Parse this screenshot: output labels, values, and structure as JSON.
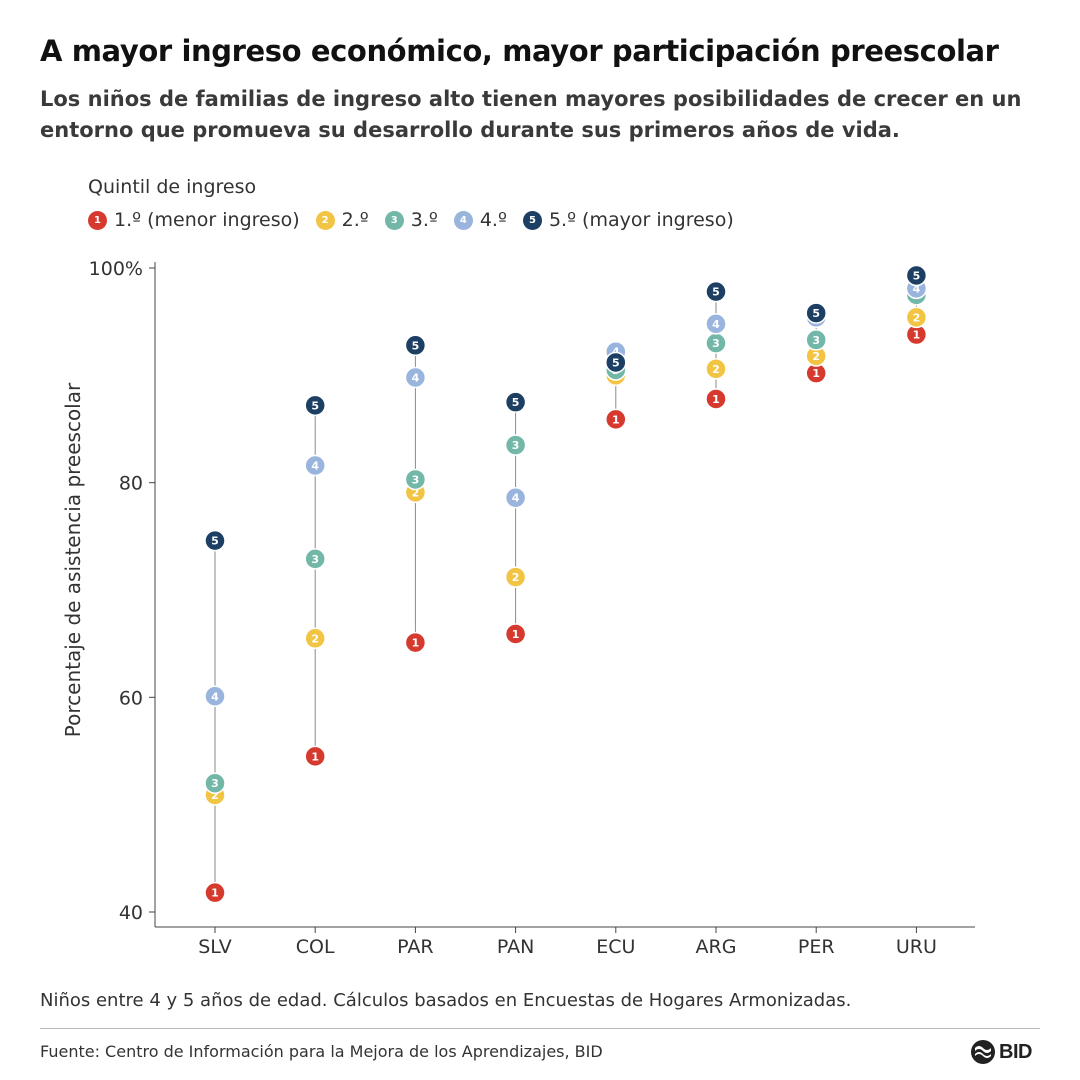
{
  "header": {
    "title": "A mayor ingreso económico, mayor participación preescolar",
    "subtitle": "Los niños de familias de ingreso alto tienen mayores posibilidades de crecer en un entorno que promueva su desarrollo durante sus primeros años de vida."
  },
  "legend": {
    "title": "Quintil de ingreso",
    "items": [
      {
        "marker": "1",
        "label": "1.º (menor ingreso)",
        "color": "#d63a2f"
      },
      {
        "marker": "2",
        "label": "2.º",
        "color": "#f2c443"
      },
      {
        "marker": "3",
        "label": "3.º",
        "color": "#72b7a8"
      },
      {
        "marker": "4",
        "label": "4.º",
        "color": "#99b4dd"
      },
      {
        "marker": "5",
        "label": "5.º (mayor ingreso)",
        "color": "#1d3f63"
      }
    ]
  },
  "chart_data": {
    "type": "scatter",
    "ylabel": "Porcentaje de asistencia preescolar",
    "xlabel": "",
    "ylim": [
      40,
      100
    ],
    "yticks": [
      {
        "value": 40,
        "label": "40"
      },
      {
        "value": 60,
        "label": "60"
      },
      {
        "value": 80,
        "label": "80"
      },
      {
        "value": 100,
        "label": "100%"
      }
    ],
    "grid": false,
    "categories": [
      "SLV",
      "COL",
      "PAR",
      "PAN",
      "ECU",
      "ARG",
      "PER",
      "URU"
    ],
    "series": [
      {
        "name": "1.º (menor ingreso)",
        "marker": "1",
        "color": "#d63a2f",
        "values": [
          41.8,
          54.5,
          65.1,
          65.9,
          85.9,
          87.8,
          90.2,
          93.8
        ]
      },
      {
        "name": "2.º",
        "marker": "2",
        "color": "#f2c443",
        "values": [
          50.9,
          65.5,
          79.1,
          71.2,
          90.0,
          90.6,
          91.8,
          95.4
        ]
      },
      {
        "name": "3.º",
        "marker": "3",
        "color": "#72b7a8",
        "values": [
          52.0,
          72.9,
          80.3,
          83.5,
          90.5,
          93.0,
          93.3,
          97.5
        ]
      },
      {
        "name": "4.º",
        "marker": "4",
        "color": "#99b4dd",
        "values": [
          60.1,
          81.6,
          89.8,
          78.6,
          92.2,
          94.8,
          95.4,
          98.1
        ]
      },
      {
        "name": "5.º (mayor ingreso)",
        "marker": "5",
        "color": "#1d3f63",
        "values": [
          74.6,
          87.2,
          92.8,
          87.5,
          91.2,
          97.8,
          95.8,
          99.3
        ]
      }
    ]
  },
  "footer": {
    "note": "Niños entre 4 y 5 años de edad. Cálculos basados en Encuestas de Hogares Armonizadas.",
    "source": "Fuente: Centro de Información para la Mejora de los Aprendizajes, BID",
    "logo_text": "BID"
  }
}
